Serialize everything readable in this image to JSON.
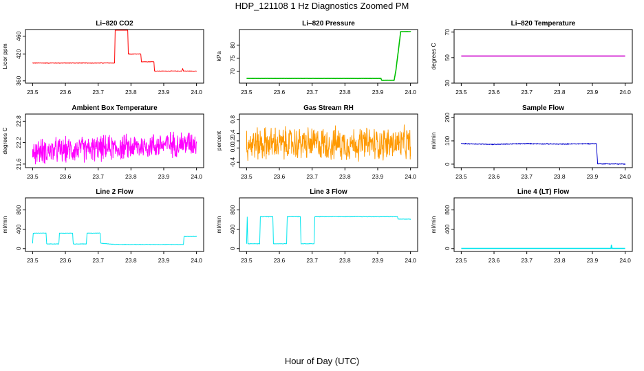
{
  "title": "HDP_121108  1 Hz Diagnostics Zoomed PM",
  "xlabel": "Hour of Day (UTC)",
  "chart_data": [
    {
      "type": "line",
      "title": "Li–820 CO2",
      "ylabel": "Licor ppm",
      "color": "#ff0000",
      "xlim": [
        23.5,
        24.0
      ],
      "xticks": [
        "23.5",
        "23.6",
        "23.7",
        "23.8",
        "23.9",
        "24.0"
      ],
      "ylim": [
        355,
        475
      ],
      "yticks": [
        {
          "v": 360,
          "t": "360"
        },
        {
          "v": 420,
          "t": "420"
        },
        {
          "v": 460,
          "t": "460"
        }
      ],
      "points": [
        [
          23.5,
          400
        ],
        [
          23.75,
          400
        ],
        [
          23.752,
          482
        ],
        [
          23.79,
          482
        ],
        [
          23.792,
          420
        ],
        [
          23.83,
          420
        ],
        [
          23.832,
          403
        ],
        [
          23.87,
          403
        ],
        [
          23.872,
          382
        ],
        [
          23.955,
          382
        ],
        [
          23.958,
          388
        ],
        [
          23.96,
          382
        ],
        [
          24.0,
          382
        ]
      ],
      "noise": 0.8
    },
    {
      "type": "line",
      "title": "Li–820 Pressure",
      "ylabel": "kPa",
      "color": "#00c000",
      "xlim": [
        23.5,
        24.0
      ],
      "xticks": [
        "23.5",
        "23.6",
        "23.7",
        "23.8",
        "23.9",
        "24.0"
      ],
      "ylim": [
        65.5,
        86
      ],
      "yticks": [
        {
          "v": 70,
          "t": "70"
        },
        {
          "v": 75,
          "t": "75"
        },
        {
          "v": 80,
          "t": "80"
        }
      ],
      "points": [
        [
          23.5,
          67.3
        ],
        [
          23.91,
          67.3
        ],
        [
          23.912,
          66.6
        ],
        [
          23.95,
          66.6
        ],
        [
          23.955,
          70
        ],
        [
          23.965,
          80
        ],
        [
          23.97,
          85.2
        ],
        [
          24.0,
          85.2
        ]
      ],
      "noise": 0.05
    },
    {
      "type": "line",
      "title": "Li–820 Temperature",
      "ylabel": "degrees C",
      "color": "#cc00cc",
      "xlim": [
        23.5,
        24.0
      ],
      "xticks": [
        "23.5",
        "23.6",
        "23.7",
        "23.8",
        "23.9",
        "24.0"
      ],
      "ylim": [
        30,
        72
      ],
      "yticks": [
        {
          "v": 30,
          "t": "30"
        },
        {
          "v": 50,
          "t": "50"
        },
        {
          "v": 70,
          "t": "70"
        }
      ],
      "points": [
        [
          23.5,
          51.2
        ],
        [
          24.0,
          51.2
        ]
      ],
      "noise": 0
    },
    {
      "type": "line",
      "title": "Ambient Box Temperature",
      "ylabel": "degrees C",
      "color": "#ff00ff",
      "xlim": [
        23.5,
        24.0
      ],
      "xticks": [
        "23.5",
        "23.6",
        "23.7",
        "23.8",
        "23.9",
        "24.0"
      ],
      "ylim": [
        21.5,
        23.0
      ],
      "yticks": [
        {
          "v": 21.6,
          "t": "21.6"
        },
        {
          "v": 22.2,
          "t": "22.2"
        },
        {
          "v": 22.8,
          "t": "22.8"
        }
      ],
      "points": [
        [
          23.5,
          21.95
        ],
        [
          23.75,
          22.05
        ],
        [
          24.0,
          22.2
        ]
      ],
      "noise": 0.42
    },
    {
      "type": "line",
      "title": "Gas Stream RH",
      "ylabel": "percent",
      "color": "#ff9900",
      "xlim": [
        23.5,
        24.0
      ],
      "xticks": [
        "23.5",
        "23.6",
        "23.7",
        "23.8",
        "23.9",
        "24.0"
      ],
      "ylim": [
        -0.55,
        0.95
      ],
      "yticks": [
        {
          "v": -0.4,
          "t": "-0.4"
        },
        {
          "v": 0.0,
          "t": "0.0"
        },
        {
          "v": 0.2,
          "t": "0.2"
        },
        {
          "v": 0.4,
          "t": "0.4"
        },
        {
          "v": 0.8,
          "t": "0.8"
        }
      ],
      "points": [
        [
          23.5,
          0.12
        ],
        [
          24.0,
          0.12
        ]
      ],
      "noise": 0.55
    },
    {
      "type": "line",
      "title": "Sample Flow",
      "ylabel": "ml/min",
      "color": "#0000cc",
      "xlim": [
        23.5,
        24.0
      ],
      "xticks": [
        "23.5",
        "23.6",
        "23.7",
        "23.8",
        "23.9",
        "24.0"
      ],
      "ylim": [
        -15,
        215
      ],
      "yticks": [
        {
          "v": 0,
          "t": "0"
        },
        {
          "v": 100,
          "t": "100"
        },
        {
          "v": 200,
          "t": "200"
        }
      ],
      "points": [
        [
          23.5,
          88
        ],
        [
          23.6,
          85
        ],
        [
          23.7,
          88
        ],
        [
          23.8,
          86
        ],
        [
          23.912,
          88
        ],
        [
          23.916,
          2
        ],
        [
          24.0,
          0
        ]
      ],
      "noise": 2.5
    },
    {
      "type": "line",
      "title": "Line 2 Flow",
      "ylabel": "ml/min",
      "color": "#00e5ee",
      "xlim": [
        23.5,
        24.0
      ],
      "xticks": [
        "23.5",
        "23.6",
        "23.7",
        "23.8",
        "23.9",
        "24.0"
      ],
      "ylim": [
        -60,
        1050
      ],
      "yticks": [
        {
          "v": 0,
          "t": "0"
        },
        {
          "v": 400,
          "t": "400"
        },
        {
          "v": 800,
          "t": "800"
        }
      ],
      "points": [
        [
          23.5,
          110
        ],
        [
          23.502,
          320
        ],
        [
          23.541,
          320
        ],
        [
          23.543,
          95
        ],
        [
          23.58,
          95
        ],
        [
          23.582,
          320
        ],
        [
          23.622,
          320
        ],
        [
          23.624,
          95
        ],
        [
          23.664,
          95
        ],
        [
          23.666,
          320
        ],
        [
          23.706,
          320
        ],
        [
          23.708,
          110
        ],
        [
          23.75,
          85
        ],
        [
          23.96,
          85
        ],
        [
          23.962,
          250
        ],
        [
          24.0,
          250
        ]
      ],
      "noise": 6
    },
    {
      "type": "line",
      "title": "Line 3 Flow",
      "ylabel": "ml/min",
      "color": "#00e5ee",
      "xlim": [
        23.5,
        24.0
      ],
      "xticks": [
        "23.5",
        "23.6",
        "23.7",
        "23.8",
        "23.9",
        "24.0"
      ],
      "ylim": [
        -60,
        1050
      ],
      "yticks": [
        {
          "v": 0,
          "t": "0"
        },
        {
          "v": 400,
          "t": "400"
        },
        {
          "v": 800,
          "t": "800"
        }
      ],
      "points": [
        [
          23.5,
          100
        ],
        [
          23.502,
          650
        ],
        [
          23.504,
          100
        ],
        [
          23.54,
          100
        ],
        [
          23.542,
          660
        ],
        [
          23.58,
          660
        ],
        [
          23.582,
          100
        ],
        [
          23.622,
          100
        ],
        [
          23.624,
          660
        ],
        [
          23.664,
          660
        ],
        [
          23.666,
          100
        ],
        [
          23.706,
          100
        ],
        [
          23.708,
          660
        ],
        [
          23.96,
          660
        ],
        [
          23.962,
          610
        ],
        [
          24.0,
          610
        ]
      ],
      "noise": 6
    },
    {
      "type": "line",
      "title": "Line 4 (LT) Flow",
      "ylabel": "ml/min",
      "color": "#00e5ee",
      "xlim": [
        23.5,
        24.0
      ],
      "xticks": [
        "23.5",
        "23.6",
        "23.7",
        "23.8",
        "23.9",
        "24.0"
      ],
      "ylim": [
        -60,
        1050
      ],
      "yticks": [
        {
          "v": 0,
          "t": "0"
        },
        {
          "v": 400,
          "t": "400"
        },
        {
          "v": 800,
          "t": "800"
        }
      ],
      "points": [
        [
          23.5,
          2
        ],
        [
          23.957,
          2
        ],
        [
          23.958,
          70
        ],
        [
          23.96,
          2
        ],
        [
          24.0,
          2
        ]
      ],
      "noise": 0
    }
  ]
}
